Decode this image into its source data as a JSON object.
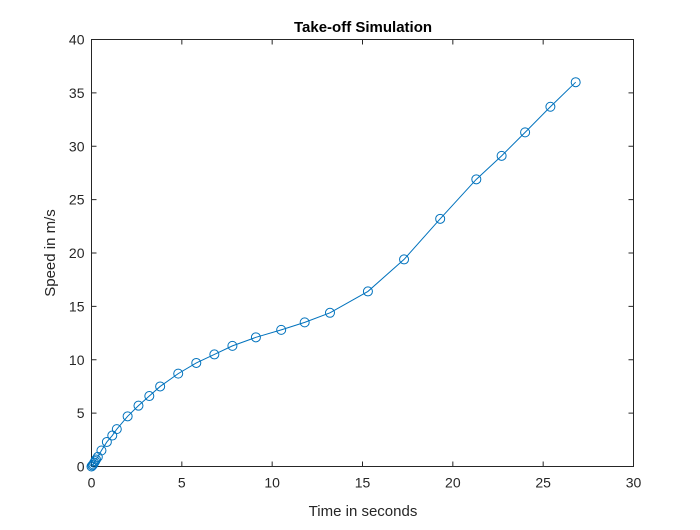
{
  "chart_data": {
    "type": "line",
    "title": "Take-off Simulation",
    "xlabel": "Time in seconds",
    "ylabel": "Speed in m/s",
    "xlim": [
      0,
      30
    ],
    "ylim": [
      0,
      40
    ],
    "x_ticks": [
      "0",
      "5",
      "10",
      "15",
      "20",
      "25",
      "30"
    ],
    "y_ticks": [
      "0",
      "5",
      "10",
      "15",
      "20",
      "25",
      "30",
      "35",
      "40"
    ],
    "grid": false,
    "legend": "none",
    "marker": "circle",
    "series_color": "#0072BD",
    "series": [
      {
        "x": [
          0,
          0.05,
          0.1,
          0.15,
          0.2,
          0.25,
          0.35,
          0.55,
          0.85,
          1.15,
          1.4,
          2.0,
          2.6,
          3.2,
          3.8,
          4.8,
          5.8,
          6.8,
          7.8,
          9.1,
          10.5,
          11.8,
          13.2,
          15.3,
          17.3,
          19.3,
          21.3,
          22.7,
          24.0,
          25.4,
          26.8
        ],
        "y": [
          0,
          0.1,
          0.2,
          0.35,
          0.5,
          0.65,
          0.9,
          1.5,
          2.3,
          2.9,
          3.5,
          4.7,
          5.7,
          6.6,
          7.5,
          8.7,
          9.7,
          10.5,
          11.3,
          12.1,
          12.8,
          13.5,
          14.4,
          16.4,
          19.4,
          23.2,
          26.9,
          29.1,
          31.3,
          33.7,
          36.0
        ]
      }
    ]
  }
}
